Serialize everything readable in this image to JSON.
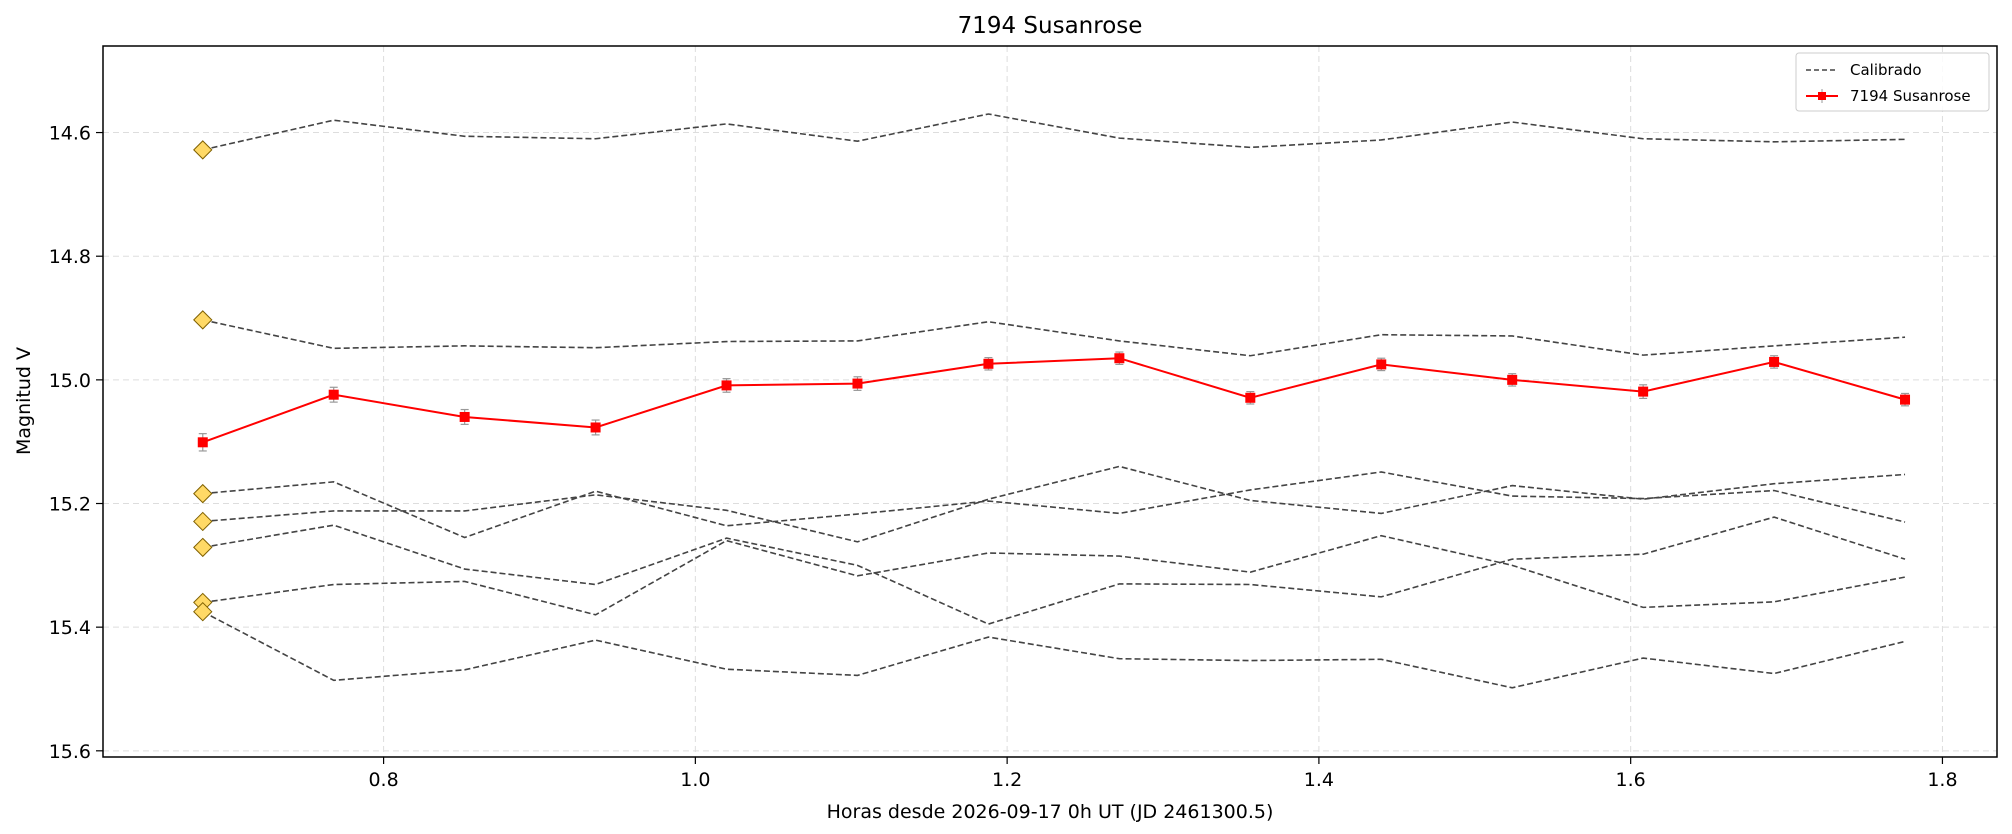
{
  "chart_data": {
    "type": "line",
    "title": "7194 Susanrose",
    "xlabel": "Horas desde 2026-09-17 0h UT (JD 2461300.5)",
    "ylabel": "Magnitud V",
    "xlim": [
      0.62,
      1.835
    ],
    "ylim": [
      15.61,
      14.46
    ],
    "y_inverted": true,
    "grid": true,
    "legend_position": "top-right",
    "xticks": [
      0.8,
      1.0,
      1.2,
      1.4,
      1.6,
      1.8
    ],
    "xtick_labels": [
      "0.8",
      "1.0",
      "1.2",
      "1.4",
      "1.6",
      "1.8"
    ],
    "yticks": [
      14.6,
      14.8,
      15.0,
      15.2,
      15.4,
      15.6
    ],
    "ytick_labels": [
      "14.6",
      "14.8",
      "15.0",
      "15.2",
      "15.4",
      "15.6"
    ],
    "x": [
      0.684,
      0.768,
      0.852,
      0.936,
      1.02,
      1.104,
      1.188,
      1.272,
      1.356,
      1.44,
      1.524,
      1.608,
      1.692,
      1.776
    ],
    "comparison_label": "Calibrado",
    "comparison_series": [
      {
        "values": [
          14.628,
          14.58,
          14.606,
          14.61,
          14.586,
          14.614,
          14.57,
          14.609,
          14.624,
          14.612,
          14.583,
          14.61,
          14.615,
          14.611
        ]
      },
      {
        "values": [
          14.903,
          14.949,
          14.945,
          14.948,
          14.938,
          14.937,
          14.906,
          14.937,
          14.961,
          14.927,
          14.929,
          14.96,
          14.945,
          14.931
        ]
      },
      {
        "values": [
          15.184,
          15.165,
          15.255,
          15.18,
          15.236,
          15.217,
          15.196,
          15.216,
          15.178,
          15.149,
          15.188,
          15.192,
          15.179,
          15.23
        ]
      },
      {
        "values": [
          15.229,
          15.212,
          15.212,
          15.186,
          15.211,
          15.262,
          15.193,
          15.14,
          15.195,
          15.216,
          15.171,
          15.193,
          15.168,
          15.153
        ]
      },
      {
        "values": [
          15.271,
          15.235,
          15.306,
          15.331,
          15.256,
          15.3,
          15.395,
          15.33,
          15.331,
          15.351,
          15.29,
          15.282,
          15.222,
          15.29
        ]
      },
      {
        "values": [
          15.36,
          15.331,
          15.326,
          15.38,
          15.26,
          15.317,
          15.28,
          15.285,
          15.311,
          15.252,
          15.3,
          15.368,
          15.359,
          15.319
        ]
      },
      {
        "values": [
          15.375,
          15.486,
          15.469,
          15.421,
          15.468,
          15.478,
          15.416,
          15.451,
          15.454,
          15.452,
          15.498,
          15.45,
          15.475,
          15.423
        ]
      }
    ],
    "series": [
      {
        "name": "7194 Susanrose",
        "values": [
          15.101,
          15.024,
          15.06,
          15.077,
          15.009,
          15.006,
          14.974,
          14.965,
          15.029,
          14.975,
          15.0,
          15.019,
          14.971,
          15.032
        ],
        "errors": [
          0.014,
          0.012,
          0.012,
          0.012,
          0.011,
          0.011,
          0.01,
          0.01,
          0.01,
          0.01,
          0.01,
          0.011,
          0.01,
          0.01
        ]
      }
    ],
    "colors": {
      "target": "#ff0000",
      "comparison": "#444444",
      "start_marker_fill": "#ffd966",
      "start_marker_edge": "#7f6000",
      "grid": "#dddddd",
      "errorbar": "#999999"
    }
  }
}
